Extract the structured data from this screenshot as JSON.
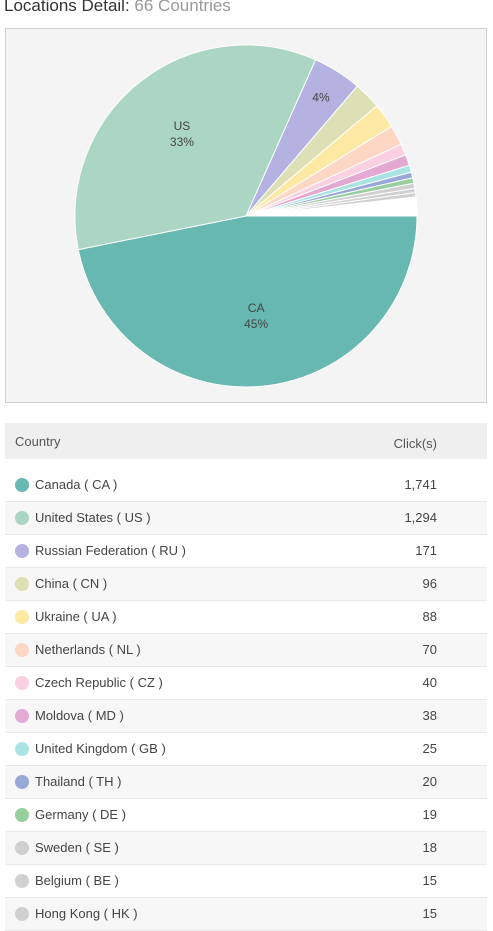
{
  "header": {
    "title_strong": "Locations Detail:",
    "title_sub": "66 Countries"
  },
  "table": {
    "col_country": "Country",
    "col_clicks": "Click(s)"
  },
  "chart_data": {
    "type": "pie",
    "pie_labels": [
      {
        "text": "CA",
        "pct": "45%"
      },
      {
        "text": "US",
        "pct": "33%"
      },
      {
        "text": "",
        "pct": "4%"
      }
    ],
    "slices": [
      {
        "label": "Canada ( CA )",
        "value": 1741,
        "color": "#66b8b0"
      },
      {
        "label": "United States ( US )",
        "value": 1294,
        "color": "#abd6c3"
      },
      {
        "label": "Russian Federation ( RU )",
        "value": 171,
        "color": "#b4b2e0"
      },
      {
        "label": "China ( CN )",
        "value": 96,
        "color": "#dde0b4"
      },
      {
        "label": "Ukraine ( UA )",
        "value": 88,
        "color": "#fde9a4"
      },
      {
        "label": "Netherlands ( NL )",
        "value": 70,
        "color": "#fdd7c3"
      },
      {
        "label": "Czech Republic ( CZ )",
        "value": 40,
        "color": "#fbd0e0"
      },
      {
        "label": "Moldova ( MD )",
        "value": 38,
        "color": "#e3a9d2"
      },
      {
        "label": "United Kingdom ( GB )",
        "value": 25,
        "color": "#a9e3e3"
      },
      {
        "label": "Thailand ( TH )",
        "value": 20,
        "color": "#98a9d8"
      },
      {
        "label": "Germany ( DE )",
        "value": 19,
        "color": "#98cf9f"
      },
      {
        "label": "Sweden ( SE )",
        "value": 18,
        "color": "#d0d0d0"
      },
      {
        "label": "Belgium ( BE )",
        "value": 15,
        "color": "#d0d0d0"
      },
      {
        "label": "Hong Kong ( HK )",
        "value": 15,
        "color": "#d0d0d0"
      }
    ],
    "rows_display": [
      "1,741",
      "1,294",
      "171",
      "96",
      "88",
      "70",
      "40",
      "38",
      "25",
      "20",
      "19",
      "18",
      "15",
      "15"
    ]
  }
}
